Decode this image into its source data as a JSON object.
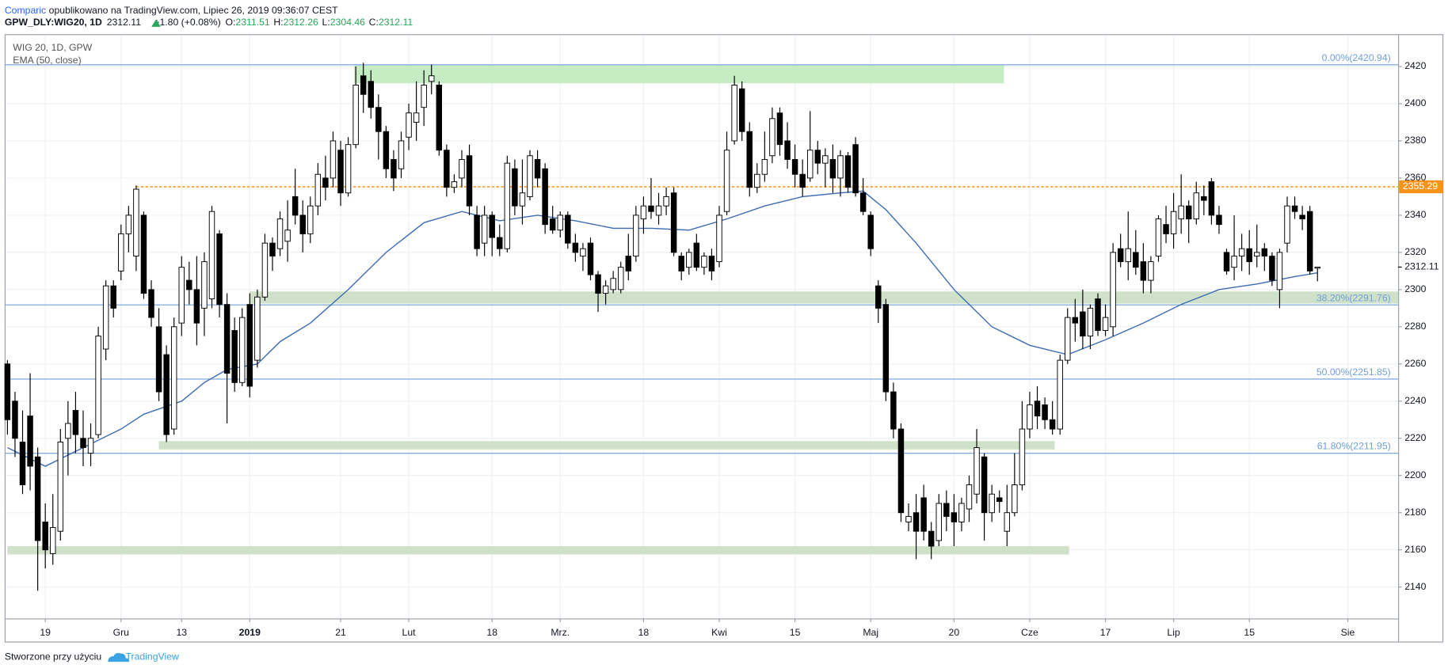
{
  "header": {
    "author": "Comparic",
    "published": "opublikowano na TradingView.com, Lipiec 26, 2019 09:36:07 CEST",
    "ticker": "GPW_DLY:WIG20, 1D",
    "change": "+1.80 (+0.08%)",
    "labels": [
      "O:",
      "H:",
      "L:",
      "C:"
    ]
  },
  "footer": {
    "text": "Stworzone przy użyciu",
    "brand": "TradingView"
  },
  "chart_data": {
    "type": "candlestick",
    "symbol": "WIG 20, 1D, GPW",
    "up_color": "#ffffff",
    "down_color": "#000000",
    "grid": true,
    "xlim": [
      -0.25,
      183.65
    ],
    "ylim": [
      2123.1,
      2436.9
    ],
    "yticks": [
      2140,
      2160,
      2180,
      2200,
      2220,
      2240,
      2260,
      2280,
      2300,
      2320,
      2340,
      2360,
      2380,
      2400,
      2420
    ],
    "xticks": [
      {
        "value": 5,
        "label": "19"
      },
      {
        "value": 15,
        "label": "Gru"
      },
      {
        "value": 23,
        "label": "13"
      },
      {
        "value": 32,
        "label": "2019"
      },
      {
        "value": 44,
        "label": "21"
      },
      {
        "value": 53,
        "label": "Lut"
      },
      {
        "value": 64,
        "label": "18"
      },
      {
        "value": 73,
        "label": "Mrz."
      },
      {
        "value": 84,
        "label": "18"
      },
      {
        "value": 94,
        "label": "Kwi"
      },
      {
        "value": 104,
        "label": "15"
      },
      {
        "value": 114,
        "label": "Maj"
      },
      {
        "value": 125,
        "label": "20"
      },
      {
        "value": 135,
        "label": "Cze"
      },
      {
        "value": 145,
        "label": "17"
      },
      {
        "value": 154,
        "label": "Lip"
      },
      {
        "value": 164,
        "label": "15"
      },
      {
        "value": 177,
        "label": "Sie"
      }
    ],
    "open": [
      2260,
      2240,
      2218,
      2232,
      2210,
      2175,
      2158,
      2170,
      2220,
      2235,
      2220,
      2212,
      2222,
      2268,
      2302,
      2310,
      2330,
      2318,
      2340,
      2300,
      2280,
      2265,
      2225,
      2282,
      2305,
      2300,
      2290,
      2295,
      2330,
      2292,
      2278,
      2250,
      2292,
      2262,
      2296,
      2325,
      2322,
      2326,
      2350,
      2340,
      2330,
      2345,
      2360,
      2360,
      2375,
      2352,
      2378,
      2415,
      2412,
      2398,
      2385,
      2370,
      2365,
      2382,
      2390,
      2398,
      2412,
      2410,
      2375,
      2355,
      2360,
      2372,
      2340,
      2325,
      2340,
      2328,
      2322,
      2365,
      2345,
      2350,
      2370,
      2365,
      2338,
      2332,
      2340,
      2325,
      2318,
      2325,
      2308,
      2298,
      2300,
      2300,
      2318,
      2318,
      2338,
      2345,
      2340,
      2345,
      2352,
      2318,
      2312,
      2325,
      2312,
      2318,
      2315,
      2342,
      2380,
      2408,
      2385,
      2355,
      2362,
      2372,
      2395,
      2380,
      2370,
      2362,
      2360,
      2375,
      2368,
      2370,
      2360,
      2372,
      2378,
      2352,
      2340,
      2302,
      2292,
      2245,
      2225,
      2175,
      2180,
      2188,
      2170,
      2165,
      2185,
      2180,
      2175,
      2182,
      2190,
      2210,
      2180,
      2188,
      2170,
      2180,
      2195,
      2225,
      2240,
      2238,
      2230,
      2225,
      2262,
      2285,
      2288,
      2275,
      2295,
      2278,
      2280,
      2322,
      2315,
      2320,
      2315,
      2305,
      2318,
      2335,
      2330,
      2338,
      2345,
      2338,
      2350,
      2358,
      2340,
      2320,
      2312,
      2318,
      2322,
      2318,
      2322,
      2318,
      2300,
      2325,
      2345,
      2340,
      2342,
      2311.51
    ],
    "high": [
      2262,
      2245,
      2235,
      2255,
      2215,
      2185,
      2190,
      2225,
      2240,
      2245,
      2235,
      2228,
      2280,
      2305,
      2305,
      2335,
      2345,
      2356,
      2342,
      2305,
      2290,
      2270,
      2285,
      2318,
      2315,
      2318,
      2320,
      2345,
      2332,
      2298,
      2285,
      2290,
      2298,
      2300,
      2330,
      2328,
      2342,
      2348,
      2365,
      2348,
      2350,
      2368,
      2372,
      2385,
      2380,
      2382,
      2420,
      2422,
      2418,
      2405,
      2388,
      2375,
      2385,
      2400,
      2412,
      2418,
      2421,
      2412,
      2378,
      2362,
      2375,
      2378,
      2345,
      2345,
      2342,
      2335,
      2372,
      2370,
      2370,
      2375,
      2375,
      2368,
      2345,
      2342,
      2342,
      2330,
      2325,
      2328,
      2310,
      2305,
      2310,
      2315,
      2330,
      2345,
      2350,
      2360,
      2352,
      2355,
      2355,
      2320,
      2322,
      2330,
      2320,
      2322,
      2345,
      2385,
      2415,
      2412,
      2390,
      2368,
      2385,
      2398,
      2398,
      2390,
      2378,
      2370,
      2396,
      2380,
      2376,
      2378,
      2375,
      2374,
      2382,
      2360,
      2342,
      2305,
      2295,
      2250,
      2228,
      2185,
      2190,
      2195,
      2175,
      2190,
      2192,
      2190,
      2188,
      2200,
      2225,
      2212,
      2195,
      2192,
      2195,
      2212,
      2240,
      2245,
      2248,
      2242,
      2240,
      2265,
      2290,
      2295,
      2300,
      2292,
      2298,
      2292,
      2325,
      2330,
      2342,
      2332,
      2325,
      2318,
      2340,
      2345,
      2352,
      2362,
      2348,
      2358,
      2356,
      2360,
      2345,
      2322,
      2340,
      2330,
      2332,
      2335,
      2325,
      2320,
      2322,
      2350,
      2350,
      2345,
      2345,
      2312.26
    ],
    "low": [
      2222,
      2210,
      2190,
      2192,
      2138,
      2150,
      2152,
      2165,
      2200,
      2212,
      2205,
      2205,
      2220,
      2262,
      2285,
      2305,
      2320,
      2310,
      2295,
      2280,
      2240,
      2218,
      2222,
      2275,
      2292,
      2270,
      2275,
      2290,
      2285,
      2228,
      2245,
      2248,
      2242,
      2258,
      2294,
      2310,
      2318,
      2315,
      2335,
      2320,
      2325,
      2340,
      2348,
      2355,
      2345,
      2350,
      2376,
      2395,
      2392,
      2370,
      2360,
      2353,
      2360,
      2375,
      2380,
      2388,
      2405,
      2372,
      2350,
      2352,
      2355,
      2340,
      2318,
      2318,
      2318,
      2318,
      2320,
      2340,
      2335,
      2348,
      2355,
      2330,
      2330,
      2328,
      2322,
      2315,
      2310,
      2305,
      2288,
      2292,
      2298,
      2298,
      2305,
      2315,
      2330,
      2338,
      2335,
      2340,
      2318,
      2305,
      2308,
      2310,
      2308,
      2305,
      2312,
      2340,
      2378,
      2380,
      2350,
      2352,
      2358,
      2368,
      2372,
      2365,
      2355,
      2350,
      2358,
      2362,
      2355,
      2352,
      2350,
      2352,
      2350,
      2340,
      2318,
      2282,
      2240,
      2220,
      2175,
      2170,
      2155,
      2165,
      2155,
      2162,
      2170,
      2162,
      2170,
      2175,
      2185,
      2165,
      2175,
      2180,
      2162,
      2178,
      2192,
      2220,
      2225,
      2225,
      2222,
      2222,
      2260,
      2272,
      2268,
      2268,
      2275,
      2275,
      2275,
      2312,
      2305,
      2308,
      2298,
      2298,
      2315,
      2325,
      2322,
      2330,
      2325,
      2335,
      2340,
      2335,
      2330,
      2308,
      2305,
      2310,
      2308,
      2312,
      2310,
      2302,
      2290,
      2320,
      2338,
      2332,
      2308,
      2304.46
    ],
    "close": [
      2230,
      2220,
      2195,
      2205,
      2165,
      2160,
      2172,
      2218,
      2228,
      2222,
      2215,
      2220,
      2275,
      2302,
      2290,
      2330,
      2340,
      2354,
      2298,
      2285,
      2245,
      2222,
      2280,
      2312,
      2300,
      2282,
      2315,
      2342,
      2292,
      2255,
      2250,
      2285,
      2248,
      2296,
      2325,
      2318,
      2338,
      2332,
      2340,
      2330,
      2345,
      2362,
      2355,
      2380,
      2352,
      2378,
      2410,
      2405,
      2398,
      2385,
      2365,
      2360,
      2380,
      2395,
      2395,
      2410,
      2415,
      2375,
      2355,
      2358,
      2370,
      2345,
      2322,
      2340,
      2328,
      2322,
      2368,
      2345,
      2352,
      2372,
      2360,
      2335,
      2332,
      2340,
      2325,
      2320,
      2322,
      2308,
      2298,
      2302,
      2306,
      2312,
      2310,
      2340,
      2345,
      2342,
      2345,
      2350,
      2320,
      2310,
      2320,
      2312,
      2318,
      2310,
      2340,
      2375,
      2410,
      2385,
      2355,
      2362,
      2370,
      2392,
      2378,
      2370,
      2362,
      2355,
      2375,
      2368,
      2372,
      2360,
      2372,
      2355,
      2352,
      2342,
      2322,
      2290,
      2245,
      2225,
      2180,
      2178,
      2170,
      2170,
      2162,
      2185,
      2178,
      2175,
      2185,
      2195,
      2215,
      2180,
      2190,
      2186,
      2180,
      2195,
      2225,
      2238,
      2232,
      2230,
      2225,
      2262,
      2285,
      2282,
      2275,
      2290,
      2278,
      2285,
      2320,
      2315,
      2322,
      2312,
      2305,
      2315,
      2338,
      2330,
      2342,
      2345,
      2338,
      2352,
      2348,
      2340,
      2335,
      2310,
      2318,
      2322,
      2315,
      2320,
      2318,
      2305,
      2320,
      2345,
      2342,
      2338,
      2310,
      2312.11
    ],
    "ema": {
      "name": "EMA (50, close)",
      "color": "#3d6cb3",
      "x": [
        0,
        5,
        10,
        15,
        18,
        23,
        26,
        29,
        33,
        36,
        40,
        45,
        50,
        55,
        60,
        65,
        70,
        75,
        80,
        85,
        90,
        95,
        100,
        105,
        110,
        113,
        116,
        120,
        125,
        130,
        135,
        140,
        145,
        150,
        155,
        160,
        165,
        170,
        173
      ],
      "values": [
        2215,
        2205,
        2215,
        2225,
        2233,
        2240,
        2250,
        2257,
        2260,
        2272,
        2282,
        2300,
        2320,
        2336,
        2342,
        2337,
        2340,
        2337,
        2333,
        2333,
        2332,
        2338,
        2345,
        2350,
        2352,
        2353,
        2343,
        2325,
        2300,
        2280,
        2270,
        2265,
        2273,
        2282,
        2292,
        2300,
        2303,
        2307,
        2309
      ]
    },
    "fib_levels": [
      {
        "label": "0.00%(2420.94)",
        "value": 2420.94
      },
      {
        "label": "38.20%(2291.76)",
        "value": 2291.76
      },
      {
        "label": "50.00%(2251.85)",
        "value": 2251.85
      },
      {
        "label": "61.80%(2211.95)",
        "value": 2211.95
      }
    ],
    "fib_color": "#6f9fdc",
    "hline": {
      "value": 2355.29,
      "from": 17,
      "color": "#f7931a"
    },
    "zones": [
      {
        "from": 45.8,
        "to": 131.6,
        "low": 2411,
        "high": 2421,
        "color": "#c6ecc4"
      },
      {
        "from": 32,
        "to": 183.65,
        "low": 2292.5,
        "high": 2299,
        "color": "#cfe2c9"
      },
      {
        "from": 20,
        "to": 138.3,
        "low": 2214,
        "high": 2218.5,
        "color": "#cfe2c9"
      },
      {
        "from": 0,
        "to": 140.2,
        "low": 2157.5,
        "high": 2162,
        "color": "#cfe2c9"
      }
    ]
  }
}
